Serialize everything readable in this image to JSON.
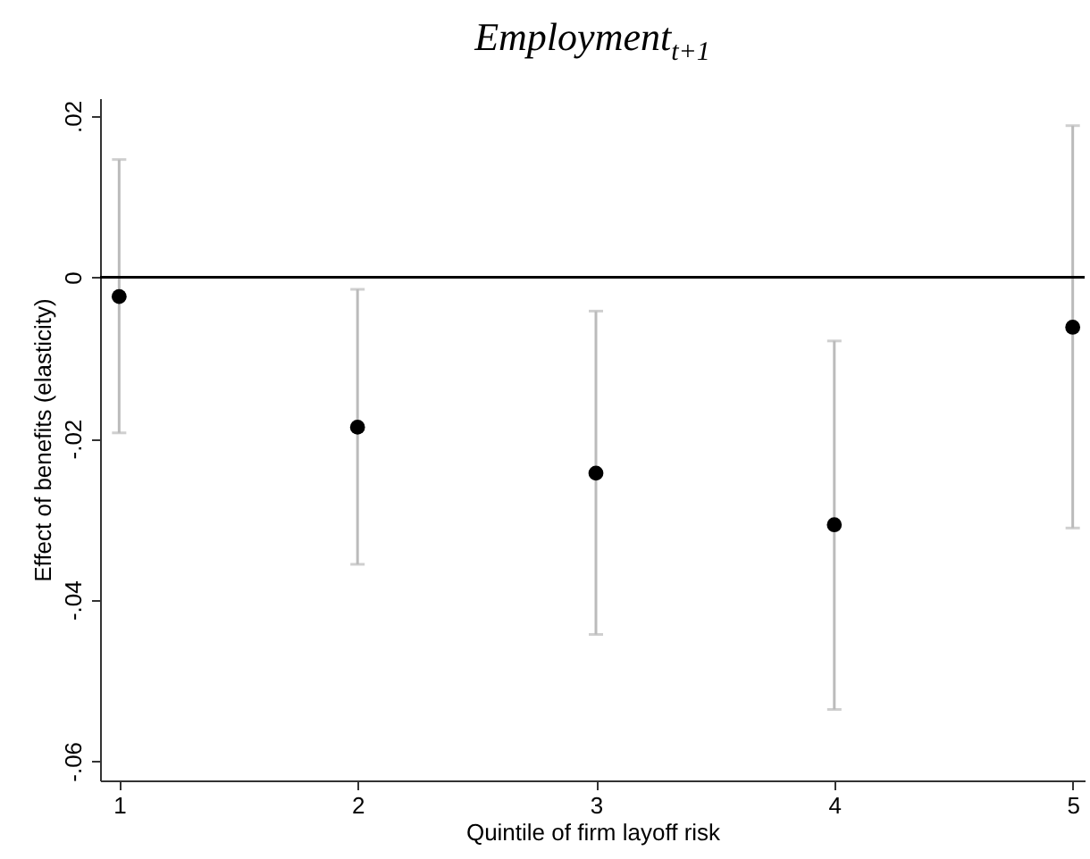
{
  "chart_data": {
    "type": "scatter",
    "title": "Employment$_{t+1}$",
    "xlabel": "Quintile of firm layoff risk",
    "ylabel": "Effect of benefits (elasticity)",
    "x": [
      1,
      2,
      3,
      4,
      5
    ],
    "series": [
      {
        "color": "#000000",
        "values": [
          -0.0024,
          -0.0186,
          -0.0243,
          -0.0307,
          -0.0062
        ],
        "errors": [
          [
            -0.0193,
            0.0146
          ],
          [
            -0.0356,
            -0.0015
          ],
          [
            -0.0443,
            -0.0042
          ],
          [
            -0.0536,
            -0.0079
          ],
          [
            -0.0311,
            0.0188
          ]
        ]
      }
    ],
    "xlim": [
      0.92,
      5.05
    ],
    "xticks": [
      1,
      2,
      3,
      4,
      5
    ],
    "ylim": [
      -0.0624,
      0.0222
    ],
    "yticks": [
      {
        "value": -0.06,
        "label": "-.06"
      },
      {
        "value": -0.04,
        "label": "-.04"
      },
      {
        "value": -0.02,
        "label": "-.02"
      },
      0,
      {
        "value": 0.02,
        "label": ".02"
      }
    ],
    "ref_lines": [
      {
        "axis": "y",
        "value": 0,
        "color": "#000000"
      }
    ],
    "marker": "circle"
  }
}
